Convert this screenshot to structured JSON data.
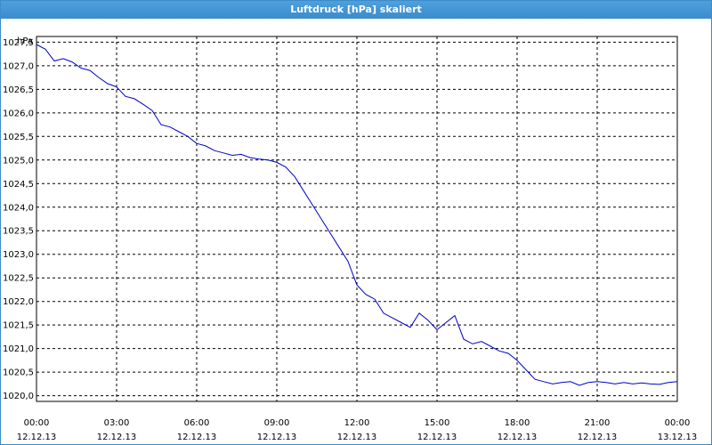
{
  "window": {
    "title": "Luftdruck [hPa] skaliert"
  },
  "colors": {
    "title_bg": "#3a8ccd",
    "series": "#0000cc",
    "grid": "#000000"
  },
  "chart_data": {
    "type": "line",
    "title": "Luftdruck [hPa] skaliert",
    "ylabel": "hPa",
    "xlabel": "",
    "grid": true,
    "ylim": [
      1019.88,
      1027.62
    ],
    "xlim": [
      "12.12.13 00:00",
      "13.12.13 00:00"
    ],
    "y_ticks": [
      "1020,0",
      "1020,5",
      "1021,0",
      "1021,5",
      "1022,0",
      "1022,5",
      "1023,0",
      "1023,5",
      "1024,0",
      "1024,5",
      "1025,0",
      "1025,5",
      "1026,0",
      "1026,5",
      "1027,0",
      "1027,5"
    ],
    "x_ticks": [
      {
        "time": "00:00",
        "date": "12.12.13"
      },
      {
        "time": "03:00",
        "date": "12.12.13"
      },
      {
        "time": "06:00",
        "date": "12.12.13"
      },
      {
        "time": "09:00",
        "date": "12.12.13"
      },
      {
        "time": "12:00",
        "date": "12.12.13"
      },
      {
        "time": "15:00",
        "date": "12.12.13"
      },
      {
        "time": "18:00",
        "date": "12.12.13"
      },
      {
        "time": "21:00",
        "date": "12.12.13"
      },
      {
        "time": "00:00",
        "date": "13.12.13"
      }
    ],
    "series": [
      {
        "x": [
          "12.12.13 00:00",
          "12.12.13 00:20",
          "12.12.13 00:40",
          "12.12.13 01:00",
          "12.12.13 01:20",
          "12.12.13 01:40",
          "12.12.13 02:00",
          "12.12.13 02:20",
          "12.12.13 02:40",
          "12.12.13 03:00",
          "12.12.13 03:20",
          "12.12.13 03:40",
          "12.12.13 04:00",
          "12.12.13 04:20",
          "12.12.13 04:40",
          "12.12.13 05:00",
          "12.12.13 05:20",
          "12.12.13 05:40",
          "12.12.13 06:00",
          "12.12.13 06:20",
          "12.12.13 06:40",
          "12.12.13 07:00",
          "12.12.13 07:20",
          "12.12.13 07:40",
          "12.12.13 08:00",
          "12.12.13 08:20",
          "12.12.13 08:40",
          "12.12.13 09:00",
          "12.12.13 09:20",
          "12.12.13 09:40",
          "12.12.13 10:00",
          "12.12.13 10:20",
          "12.12.13 10:40",
          "12.12.13 11:00",
          "12.12.13 11:20",
          "12.12.13 11:40",
          "12.12.13 12:00",
          "12.12.13 12:20",
          "12.12.13 12:40",
          "12.12.13 13:00",
          "12.12.13 13:20",
          "12.12.13 13:40",
          "12.12.13 14:00",
          "12.12.13 14:20",
          "12.12.13 14:40",
          "12.12.13 15:00",
          "12.12.13 15:20",
          "12.12.13 15:40",
          "12.12.13 16:00",
          "12.12.13 16:20",
          "12.12.13 16:40",
          "12.12.13 17:00",
          "12.12.13 17:20",
          "12.12.13 17:40",
          "12.12.13 18:00",
          "12.12.13 18:20",
          "12.12.13 18:40",
          "12.12.13 19:00",
          "12.12.13 19:20",
          "12.12.13 19:40",
          "12.12.13 20:00",
          "12.12.13 20:20",
          "12.12.13 20:40",
          "12.12.13 21:00",
          "12.12.13 21:20",
          "12.12.13 21:40",
          "12.12.13 22:00",
          "12.12.13 22:20",
          "12.12.13 22:40",
          "12.12.13 23:00",
          "12.12.13 23:20",
          "12.12.13 23:40",
          "13.12.13 00:00"
        ],
        "y": [
          1027.45,
          1027.35,
          1027.1,
          1027.15,
          1027.08,
          1026.95,
          1026.9,
          1026.75,
          1026.62,
          1026.55,
          1026.35,
          1026.3,
          1026.18,
          1026.05,
          1025.75,
          1025.7,
          1025.6,
          1025.5,
          1025.35,
          1025.3,
          1025.2,
          1025.15,
          1025.1,
          1025.12,
          1025.05,
          1025.02,
          1025.0,
          1024.95,
          1024.85,
          1024.65,
          1024.35,
          1024.05,
          1023.75,
          1023.45,
          1023.15,
          1022.85,
          1022.35,
          1022.15,
          1022.05,
          1021.75,
          1021.65,
          1021.55,
          1021.45,
          1021.75,
          1021.6,
          1021.4,
          1021.55,
          1021.7,
          1021.2,
          1021.1,
          1021.15,
          1021.05,
          1020.95,
          1020.9,
          1020.75,
          1020.55,
          1020.35,
          1020.3,
          1020.25,
          1020.28,
          1020.3,
          1020.22,
          1020.28,
          1020.3,
          1020.28,
          1020.25,
          1020.28,
          1020.25,
          1020.27,
          1020.25,
          1020.24,
          1020.28,
          1020.3
        ]
      }
    ]
  }
}
